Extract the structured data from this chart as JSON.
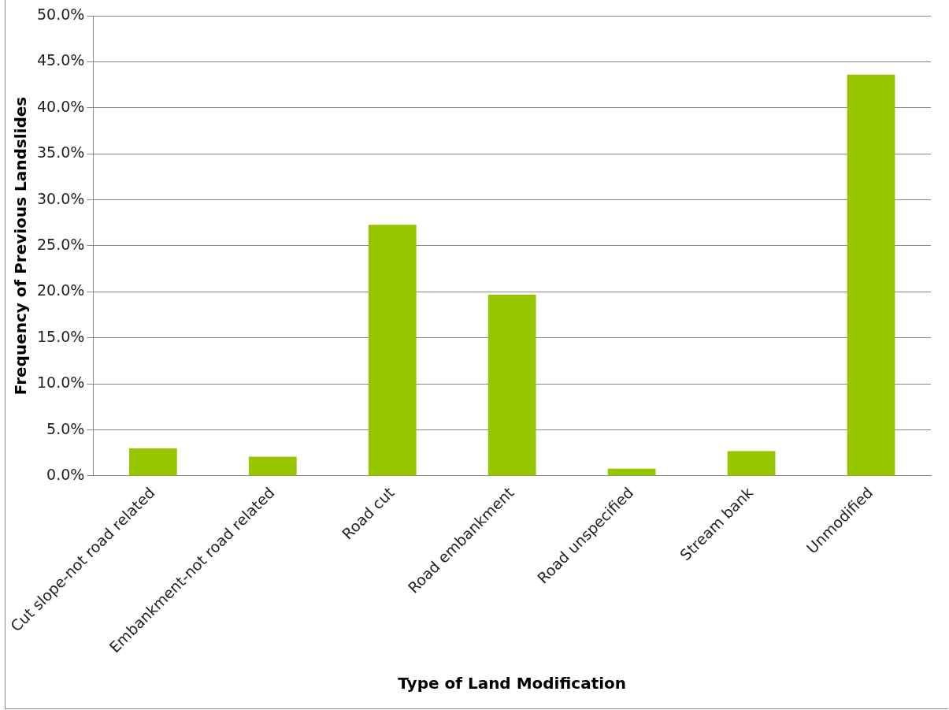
{
  "chart_data": {
    "type": "bar",
    "xlabel": "Type of Land Modification",
    "ylabel": "Frequency of Previous Landslides",
    "categories": [
      "Cut slope-not road related",
      "Embankment-not road related",
      "Road cut",
      "Road embankment",
      "Road unspecified",
      "Stream bank",
      "Unmodified"
    ],
    "values": [
      3.0,
      2.1,
      27.3,
      19.7,
      0.8,
      2.7,
      43.6
    ],
    "color": "#95c600",
    "ylim": [
      0,
      50
    ],
    "yticks": [
      {
        "value": 0,
        "label": "0.0%"
      },
      {
        "value": 5,
        "label": "5.0%"
      },
      {
        "value": 10,
        "label": "10.0%"
      },
      {
        "value": 15,
        "label": "15.0%"
      },
      {
        "value": 20,
        "label": "20.0%"
      },
      {
        "value": 25,
        "label": "25.0%"
      },
      {
        "value": 30,
        "label": "30.0%"
      },
      {
        "value": 35,
        "label": "35.0%"
      },
      {
        "value": 40,
        "label": "40.0%"
      },
      {
        "value": 45,
        "label": "45.0%"
      },
      {
        "value": 50,
        "label": "50.0%"
      }
    ],
    "grid": "y",
    "legend": false
  }
}
